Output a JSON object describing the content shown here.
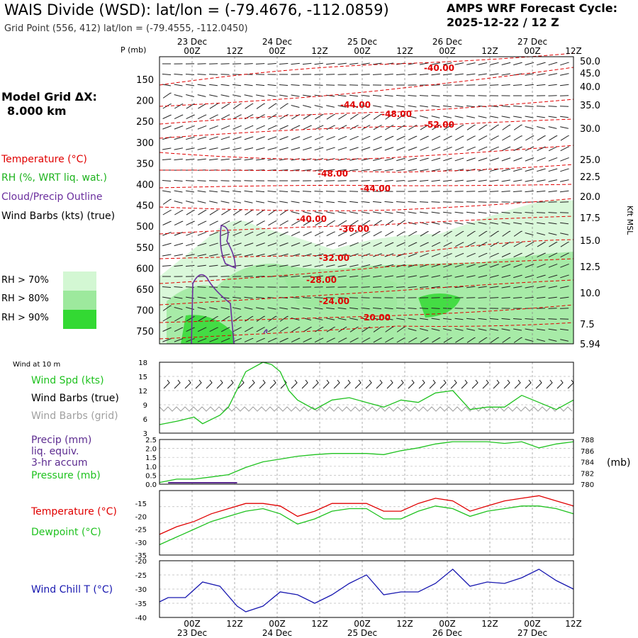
{
  "header": {
    "title": "WAIS Divide (WSD):  lat/lon = (-79.4676, -112.0859)",
    "subtitle": "Grid Point (556, 412) lat/lon = (-79.4555, -112.0450)",
    "cycle_label": "AMPS WRF Forecast Cycle:",
    "cycle_value": "2025-12-22 / 12  Z",
    "model_grid_label": "Model Grid ΔX:",
    "model_grid_value": "8.000 km"
  },
  "legend": {
    "temperature": "Temperature (°C)",
    "rh": "RH (%, WRT liq. wat.)",
    "cloud": "Cloud/Precip Outline",
    "wind_barbs": "Wind Barbs (kts) (true)",
    "rh70": "RH > 70%",
    "rh80": "RH > 80%",
    "rh90": "RH > 90%",
    "rh70_color": "#d3f7d3",
    "rh80_color": "#9de99d",
    "rh90_color": "#33d933"
  },
  "colors": {
    "temperature": "#e00000",
    "rh_label": "#1db31d",
    "cloud": "#6b2f9e",
    "wind_speed": "#1fc21f",
    "wind_grid": "#a0a0a0",
    "precip": "#5b2a8f",
    "windchill": "#1818b0",
    "dewpoint": "#1fc21f"
  },
  "chart_data": [
    {
      "type": "heatmap",
      "name": "cross-section",
      "p_axis_label": "P (mb)",
      "kft_axis_label": "Kft MSL",
      "p_ticks": [
        150,
        200,
        250,
        300,
        350,
        400,
        450,
        500,
        550,
        600,
        650,
        700,
        750
      ],
      "kft_ticks": [
        "50.0",
        "45.0",
        "40.0",
        "35.0",
        "30.0",
        "25.0",
        "22.5",
        "20.0",
        "17.5",
        "15.0",
        "12.5",
        "10.0",
        "7.5",
        "5.94"
      ],
      "top_time_ticks": [
        "00Z",
        "12Z",
        "00Z",
        "12Z",
        "00Z",
        "12Z",
        "00Z",
        "12Z",
        "00Z",
        "12Z"
      ],
      "top_day_labels": [
        "23 Dec",
        "24 Dec",
        "25 Dec",
        "26 Dec",
        "27 Dec"
      ],
      "temperature_labels": [
        "-40.00",
        "-44.00",
        "-48.00",
        "-52.00",
        "-48.00",
        "-44.00",
        "-40.00",
        "-36.00",
        "-32.00",
        "-28.00",
        "-24.00",
        "-20.00"
      ]
    },
    {
      "type": "line",
      "name": "wind10m",
      "panel_label": "Wind at 10 m",
      "legend": [
        "Wind Spd (kts)",
        "Wind Barbs (true)",
        "Wind Barbs (grid)"
      ],
      "ylim": [
        3,
        18
      ],
      "yticks": [
        "18",
        "15",
        "12",
        "9",
        "6",
        "3"
      ],
      "x_hours": [
        0,
        6,
        12,
        15,
        21,
        24,
        30,
        36,
        39,
        42,
        45,
        48,
        54,
        60,
        66,
        72,
        78,
        84,
        90,
        96,
        102,
        108,
        114,
        120,
        126,
        132,
        138,
        144
      ],
      "wind_speed": [
        4.8,
        5.5,
        6.4,
        5.0,
        6.8,
        8.5,
        16.0,
        18.0,
        17.5,
        16.0,
        12.0,
        10.0,
        8.0,
        10.0,
        10.5,
        9.5,
        8.5,
        10.0,
        9.5,
        11.5,
        12.0,
        8.0,
        8.5,
        8.5,
        11.0,
        9.5,
        8.0,
        10.0
      ]
    },
    {
      "type": "line",
      "name": "precip-pressure",
      "legend": [
        "Precip (mm)",
        "liq. equiv.",
        "3-hr accum",
        "Pressure (mb)"
      ],
      "units_label": "(mb)",
      "ylim_left": [
        0,
        2.5
      ],
      "yticks_left": [
        "2.5",
        "2.0",
        "1.5",
        "1.0",
        "0.5",
        "0.0"
      ],
      "ylim_right": [
        780,
        788
      ],
      "yticks_right": [
        "788",
        "786",
        "784",
        "782",
        "780"
      ],
      "x_hours": [
        0,
        6,
        12,
        18,
        24,
        30,
        36,
        42,
        48,
        54,
        60,
        66,
        72,
        78,
        84,
        90,
        96,
        102,
        108,
        114,
        120,
        126,
        132,
        138,
        144
      ],
      "pressure": [
        780.3,
        780.9,
        780.9,
        781.3,
        781.7,
        783.0,
        784.0,
        784.5,
        785.0,
        785.3,
        785.5,
        785.5,
        785.5,
        785.3,
        786.0,
        786.5,
        787.2,
        787.6,
        787.6,
        787.6,
        787.3,
        787.6,
        786.5,
        787.2,
        787.6
      ],
      "precip": [
        0.0,
        0.02,
        0.02,
        0.0,
        0.0,
        0.0,
        0.0,
        0.0,
        0.0,
        0.0,
        0.0,
        0.0,
        0.0,
        0.0,
        0.0,
        0.0,
        0.0,
        0.0,
        0.0,
        0.0,
        0.0,
        0.0,
        0.0,
        0.0,
        0.0
      ]
    },
    {
      "type": "line",
      "name": "temperature-dewpoint",
      "legend": [
        "Temperature (°C)",
        "Dewpoint (°C)"
      ],
      "ylim": [
        -35,
        -10
      ],
      "yticks": [
        "-15",
        "-20",
        "-25",
        "-30",
        "-35"
      ],
      "x_hours": [
        0,
        6,
        12,
        18,
        24,
        30,
        36,
        42,
        48,
        54,
        60,
        66,
        72,
        78,
        84,
        90,
        96,
        102,
        108,
        114,
        120,
        126,
        132,
        138,
        144
      ],
      "temperature": [
        -27,
        -24,
        -22,
        -19,
        -17,
        -15,
        -15,
        -16,
        -20,
        -18,
        -15,
        -15,
        -15,
        -18,
        -18,
        -15,
        -13,
        -14,
        -18,
        -16,
        -14,
        -13,
        -12,
        -14,
        -16
      ],
      "dewpoint": [
        -31,
        -28,
        -25,
        -22,
        -20,
        -18,
        -17,
        -19,
        -23,
        -21,
        -18,
        -17,
        -17,
        -21,
        -21,
        -18,
        -16,
        -17,
        -20,
        -18,
        -17,
        -16,
        -16,
        -17,
        -19
      ]
    },
    {
      "type": "line",
      "name": "windchill",
      "legend": [
        "Wind Chill T (°C)"
      ],
      "ylim": [
        -40,
        -20
      ],
      "yticks": [
        "-20",
        "-25",
        "-30",
        "-35",
        "-40"
      ],
      "x_hours": [
        0,
        3,
        9,
        15,
        21,
        27,
        30,
        36,
        42,
        48,
        54,
        60,
        66,
        72,
        78,
        84,
        90,
        96,
        102,
        108,
        114,
        120,
        126,
        132,
        138,
        144
      ],
      "windchill": [
        -34.5,
        -33,
        -33,
        -27.5,
        -29,
        -36,
        -38,
        -36,
        -31,
        -32,
        -35,
        -32,
        -28,
        -25,
        -32,
        -31,
        -31,
        -28,
        -23,
        -29,
        -27.5,
        -28,
        -26,
        -23,
        -27,
        -30
      ],
      "bottom_time_ticks": [
        "00Z",
        "12Z",
        "00Z",
        "12Z",
        "00Z",
        "12Z",
        "00Z",
        "12Z",
        "00Z",
        "12Z"
      ],
      "bottom_day_labels": [
        "23 Dec",
        "24 Dec",
        "25 Dec",
        "26 Dec",
        "27 Dec"
      ]
    }
  ]
}
